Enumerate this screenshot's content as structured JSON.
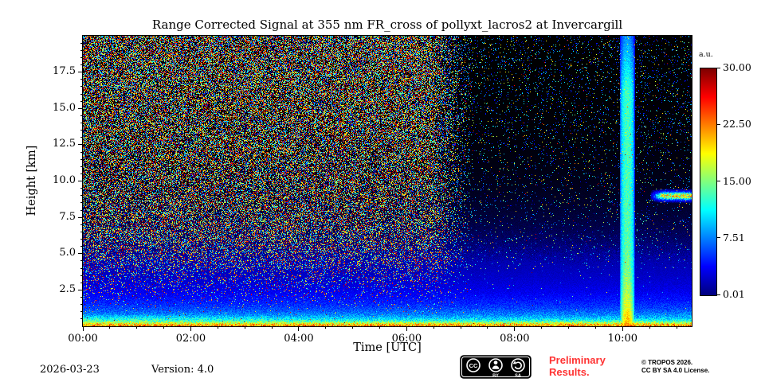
{
  "title": "Range Corrected Signal at 355 nm FR_cross of pollyxt_lacros2 at Invercargill",
  "axes": {
    "x": {
      "label": "Time [UTC]",
      "tick_labels": [
        "00:00",
        "02:00",
        "04:00",
        "06:00",
        "08:00",
        "10:00"
      ],
      "tick_hours": [
        0,
        2,
        4,
        6,
        8,
        10
      ]
    },
    "y": {
      "label": "Height [km]",
      "tick_labels": [
        "2.5",
        "5.0",
        "7.5",
        "10.0",
        "12.5",
        "15.0",
        "17.5"
      ],
      "tick_km": [
        2.5,
        5.0,
        7.5,
        10.0,
        12.5,
        15.0,
        17.5
      ]
    }
  },
  "colorbar": {
    "unit_label": "a.u.",
    "tick_labels": [
      "30.00",
      "22.50",
      "15.00",
      "7.51",
      "0.01"
    ],
    "tick_values": [
      30.0,
      22.5,
      15.0,
      7.51,
      0.01
    ],
    "colormap": "jet"
  },
  "footer": {
    "date": "2026-03-23",
    "version": "Version: 4.0",
    "preliminary_line1": "Preliminary",
    "preliminary_line2": "Results.",
    "copyright_line1": "© TROPOS 2026.",
    "copyright_line2": "CC BY SA 4.0 License.",
    "badge": {
      "cc": "CC",
      "by": "BY",
      "sa": "SA"
    }
  },
  "colors": {
    "preliminary_red": "#ff3333",
    "plot_frame": "#000000",
    "page_background": "#ffffff"
  },
  "chart_data": {
    "type": "heatmap",
    "title": "Range Corrected Signal at 355 nm FR_cross of pollyxt_lacros2 at Invercargill",
    "xlabel": "Time [UTC]",
    "ylabel": "Height [km]",
    "xlim_hours": [
      0,
      11.28
    ],
    "ylim_km": [
      0,
      20
    ],
    "x_ticks_hours": [
      0,
      2,
      4,
      6,
      8,
      10
    ],
    "y_ticks_km": [
      2.5,
      5,
      7.5,
      10,
      12.5,
      15,
      17.5
    ],
    "colorbar": {
      "label": "a.u.",
      "scale": "linear",
      "min": 0.01,
      "max": 30.0,
      "ticks": [
        0.01,
        7.51,
        15.0,
        22.5,
        30.0
      ],
      "colormap": "jet"
    },
    "features": [
      {
        "name": "daylight-noise-region",
        "description": "Dense multicolored speckle noise from solar background, strongest above ~3 km, lasting until about 06:55 UTC",
        "t_start_hours": 0,
        "t_end_hours": 6.9,
        "fade_hours": 0.8
      },
      {
        "name": "night-region",
        "description": "Low-noise near-black background after ~07:00 UTC with sparse dim blue speckles",
        "t_start_hours": 7.0
      },
      {
        "name": "boundary-layer-signal",
        "description": "Strong blue-cyan range corrected signal below ~3 km over the whole period",
        "scale_height_km": 2.6
      },
      {
        "name": "near-surface-aerosol-layer",
        "description": "Bright green-yellow thin layer just above the surface",
        "height_km": 0.12,
        "thickness_km": 0.25
      },
      {
        "name": "bright-vertical-column",
        "description": "Narrow bright green vertical column (cloud / calibration) around 10:05 UTC reaching ~18 km, yellow near the ground",
        "time_hours": 10.08,
        "width_hours": 0.14
      },
      {
        "name": "cirrus-layer",
        "description": "Thin green-yellow cloud layer near 9 km from ~10:30 UTC to the end",
        "time_start_hours": 10.5,
        "time_end_hours": 11.28,
        "height_km": 9.0,
        "thickness_km": 0.4
      }
    ]
  }
}
